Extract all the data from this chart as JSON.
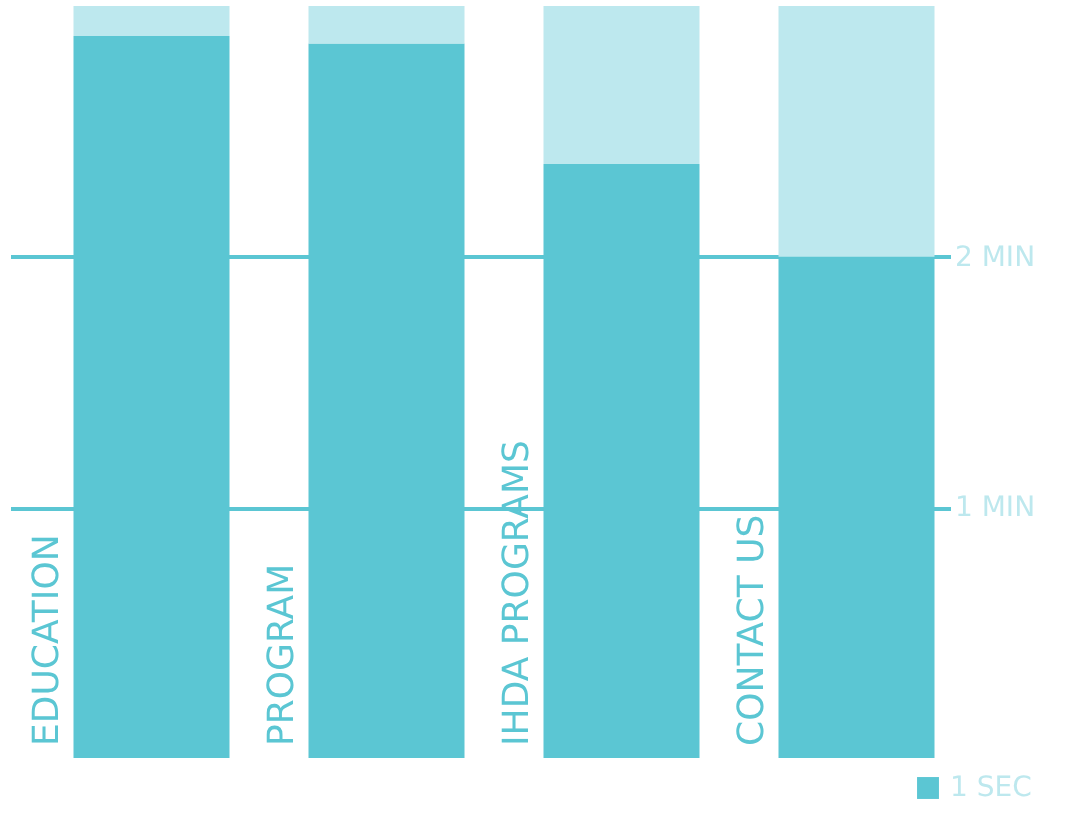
{
  "chart_data": {
    "type": "bar",
    "stacked": true,
    "categories": [
      "EDUCATION",
      "PROGRAM",
      "IHDA PROGRAMS",
      "CONTACT US"
    ],
    "series": [
      {
        "name": "1 SEC",
        "color": "#5bc6d3",
        "values": [
          2.88,
          2.85,
          2.37,
          2
        ]
      },
      {
        "color": "#bde8ee",
        "values": [
          0.12,
          0.15,
          0.63,
          1
        ]
      }
    ],
    "ylim": [
      0,
      3
    ],
    "yticks": [
      {
        "value": 1,
        "label": "1 MIN"
      },
      {
        "value": 2,
        "label": "2 MIN"
      }
    ],
    "grid": "y",
    "legend": "bottom right"
  }
}
